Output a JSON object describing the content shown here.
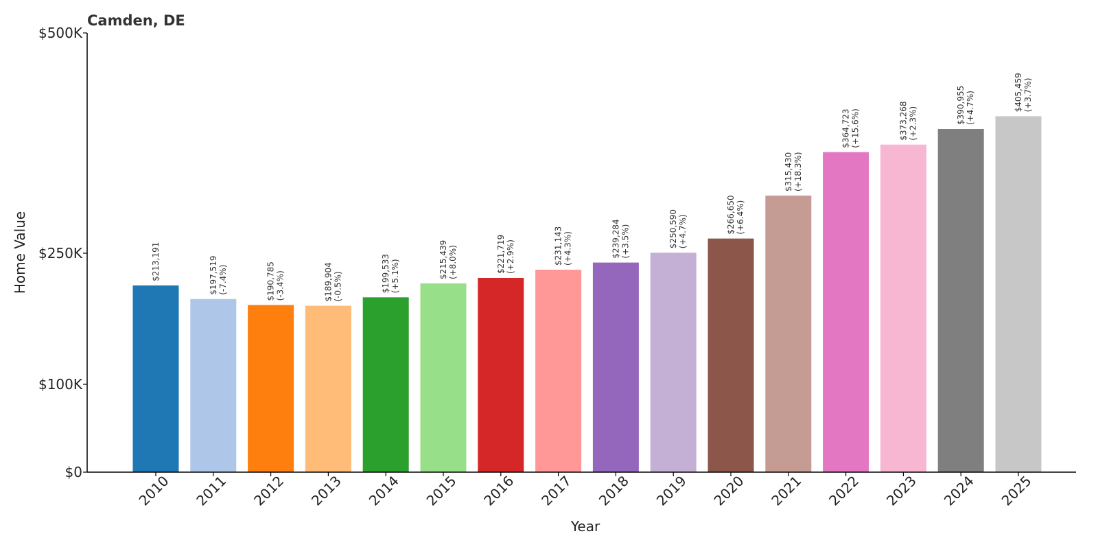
{
  "chart_data": {
    "type": "bar",
    "title": "Camden, DE",
    "xlabel": "Year",
    "ylabel": "Home Value",
    "ylim": [
      0,
      500000
    ],
    "y_ticks": [
      {
        "value": 0,
        "label": "$0"
      },
      {
        "value": 100000,
        "label": "$100K"
      },
      {
        "value": 250000,
        "label": "$250K"
      },
      {
        "value": 500000,
        "label": "$500K"
      }
    ],
    "categories": [
      "2010",
      "2011",
      "2012",
      "2013",
      "2014",
      "2015",
      "2016",
      "2017",
      "2018",
      "2019",
      "2020",
      "2021",
      "2022",
      "2023",
      "2024",
      "2025"
    ],
    "values": [
      213191,
      197519,
      190785,
      189904,
      199533,
      215439,
      221719,
      231143,
      239284,
      250590,
      266650,
      315430,
      364723,
      373268,
      390955,
      405459
    ],
    "value_labels": [
      "$213,191",
      "$197,519",
      "$190,785",
      "$189,904",
      "$199,533",
      "$215,439",
      "$221,719",
      "$231,143",
      "$239,284",
      "$250,590",
      "$266,650",
      "$315,430",
      "$364,723",
      "$373,268",
      "$390,955",
      "$405,459"
    ],
    "change_labels": [
      "",
      "(-7.4%)",
      "(-3.4%)",
      "(-0.5%)",
      "(+5.1%)",
      "(+8.0%)",
      "(+2.9%)",
      "(+4.3%)",
      "(+3.5%)",
      "(+4.7%)",
      "(+6.4%)",
      "(+18.3%)",
      "(+15.6%)",
      "(+2.3%)",
      "(+4.7%)",
      "(+3.7%)"
    ],
    "colors": [
      "#1f77b4",
      "#aec7e8",
      "#ff7f0e",
      "#ffbb78",
      "#2ca02c",
      "#98df8a",
      "#d62728",
      "#ff9896",
      "#9467bd",
      "#c5b0d5",
      "#8c564b",
      "#c49c94",
      "#e377c2",
      "#f7b6d2",
      "#7f7f7f",
      "#c7c7c7"
    ],
    "grid": false,
    "legend": "none"
  }
}
